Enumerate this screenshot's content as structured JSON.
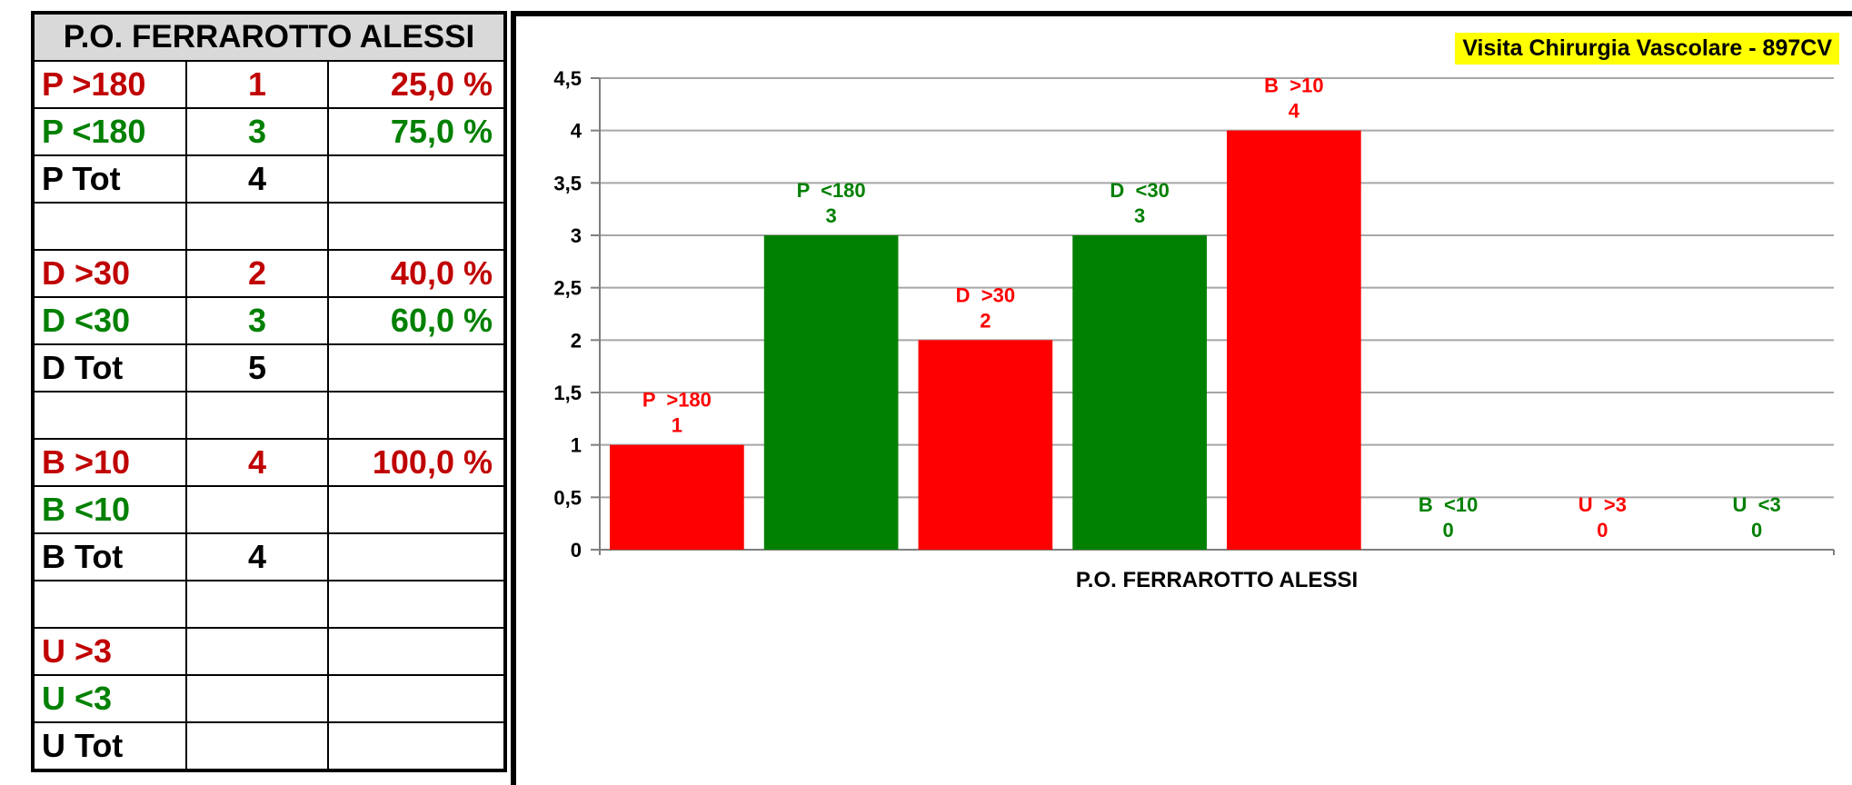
{
  "table": {
    "title": "P.O. FERRAROTTO ALESSI",
    "rows": [
      {
        "label": "P  >180",
        "count": "1",
        "pct": "25,0 %",
        "color": "#c00000"
      },
      {
        "label": "P  <180",
        "count": "3",
        "pct": "75,0 %",
        "color": "#008000"
      },
      {
        "label": "P  Tot",
        "count": "4",
        "pct": "",
        "color": "#000000"
      },
      {
        "label": "",
        "count": "",
        "pct": "",
        "color": "#000000"
      },
      {
        "label": "D  >30",
        "count": "2",
        "pct": "40,0 %",
        "color": "#c00000"
      },
      {
        "label": "D  <30",
        "count": "3",
        "pct": "60,0 %",
        "color": "#008000"
      },
      {
        "label": "D  Tot",
        "count": "5",
        "pct": "",
        "color": "#000000"
      },
      {
        "label": "",
        "count": "",
        "pct": "",
        "color": "#000000"
      },
      {
        "label": "B  >10",
        "count": "4",
        "pct": "100,0 %",
        "color": "#c00000"
      },
      {
        "label": "B  <10",
        "count": "",
        "pct": "",
        "color": "#008000"
      },
      {
        "label": "B  Tot",
        "count": "4",
        "pct": "",
        "color": "#000000"
      },
      {
        "label": "",
        "count": "",
        "pct": "",
        "color": "#000000"
      },
      {
        "label": "U  >3",
        "count": "",
        "pct": "",
        "color": "#c00000"
      },
      {
        "label": "U  <3",
        "count": "",
        "pct": "",
        "color": "#008000"
      },
      {
        "label": "U  Tot",
        "count": "",
        "pct": "",
        "color": "#000000"
      }
    ]
  },
  "chart_data": {
    "type": "bar",
    "title": "Visita Chirurgia Vascolare - 897CV",
    "xlabel": "P.O. FERRAROTTO ALESSI",
    "ylabel": "",
    "ylim": [
      0,
      4.5
    ],
    "yticks": [
      "0",
      "0,5",
      "1",
      "1,5",
      "2",
      "2,5",
      "3",
      "3,5",
      "4",
      "4,5"
    ],
    "ytick_values": [
      0,
      0.5,
      1,
      1.5,
      2,
      2.5,
      3,
      3.5,
      4,
      4.5
    ],
    "grid": true,
    "legend": "none",
    "categories": [
      "P  >180",
      "P  <180",
      "D  >30",
      "D  <30",
      "B  >10",
      "B  <10",
      "U  >3",
      "U  <3"
    ],
    "values": [
      1,
      3,
      2,
      3,
      4,
      0,
      0,
      0
    ],
    "value_labels": [
      "1",
      "3",
      "2",
      "3",
      "4",
      "0",
      "0",
      "0"
    ],
    "bar_colors": [
      "#ff0000",
      "#008000",
      "#ff0000",
      "#008000",
      "#ff0000",
      "#008000",
      "#ff0000",
      "#008000"
    ],
    "label_colors": [
      "#ff0000",
      "#008000",
      "#ff0000",
      "#008000",
      "#ff0000",
      "#008000",
      "#ff0000",
      "#008000"
    ],
    "title_background": "#ffff00",
    "gridline_color": "#a6a6a6"
  }
}
